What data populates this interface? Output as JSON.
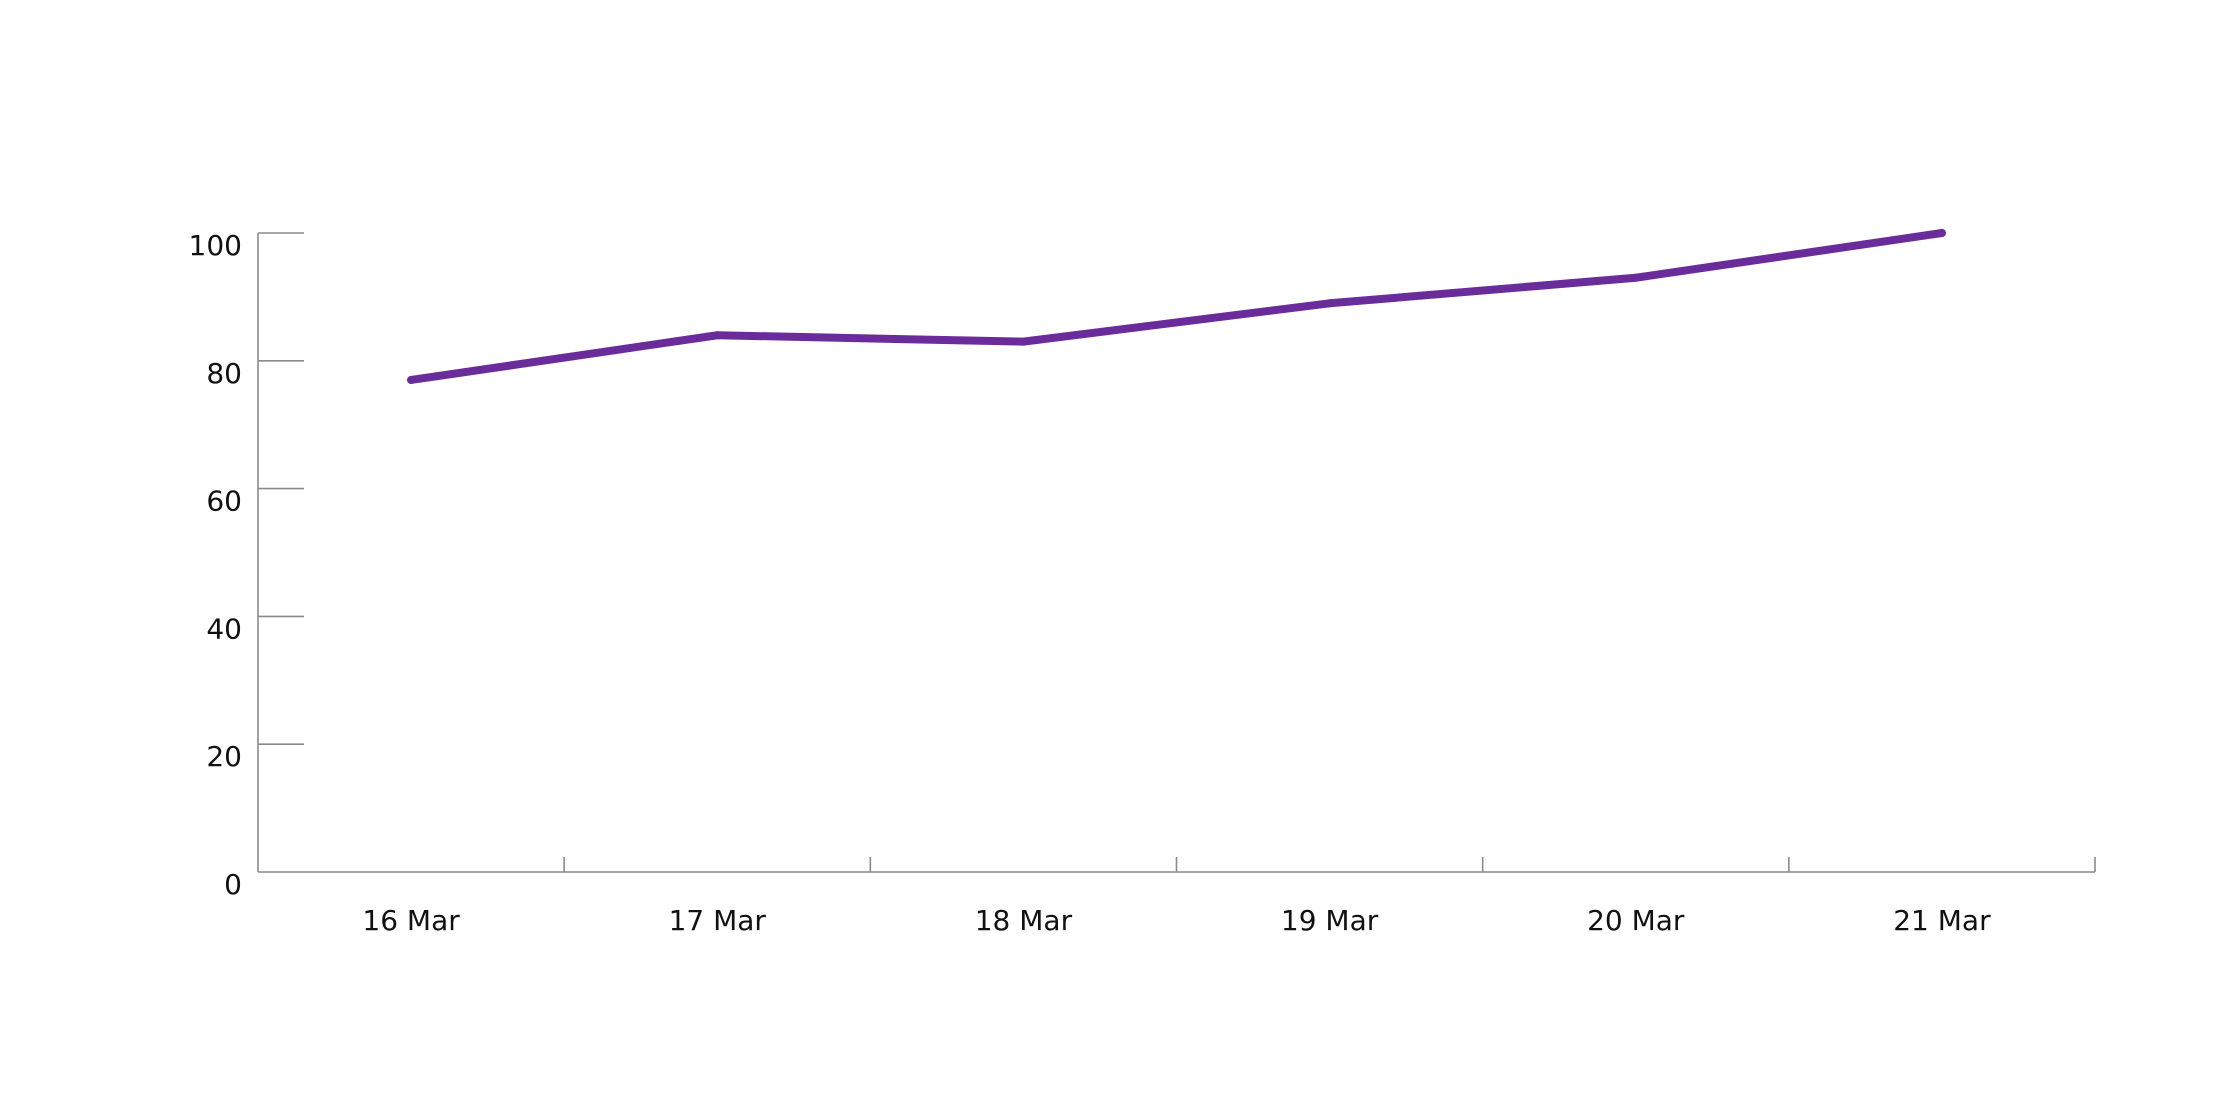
{
  "chart_data": {
    "type": "line",
    "title": "",
    "xlabel": "",
    "ylabel": "",
    "categories": [
      "16 Mar",
      "17 Mar",
      "18 Mar",
      "19 Mar",
      "20 Mar",
      "21 Mar"
    ],
    "series": [
      {
        "values": [
          77,
          84,
          83,
          89,
          93,
          100
        ],
        "color": "#6a2c9a"
      }
    ],
    "ylim": [
      0,
      100
    ],
    "yticks": [
      0,
      20,
      40,
      60,
      80,
      100
    ],
    "grid": false,
    "legend": "none"
  },
  "colors": {
    "axis": "#8a8a8a",
    "text": "#111111",
    "line": "#6a2c9a"
  }
}
